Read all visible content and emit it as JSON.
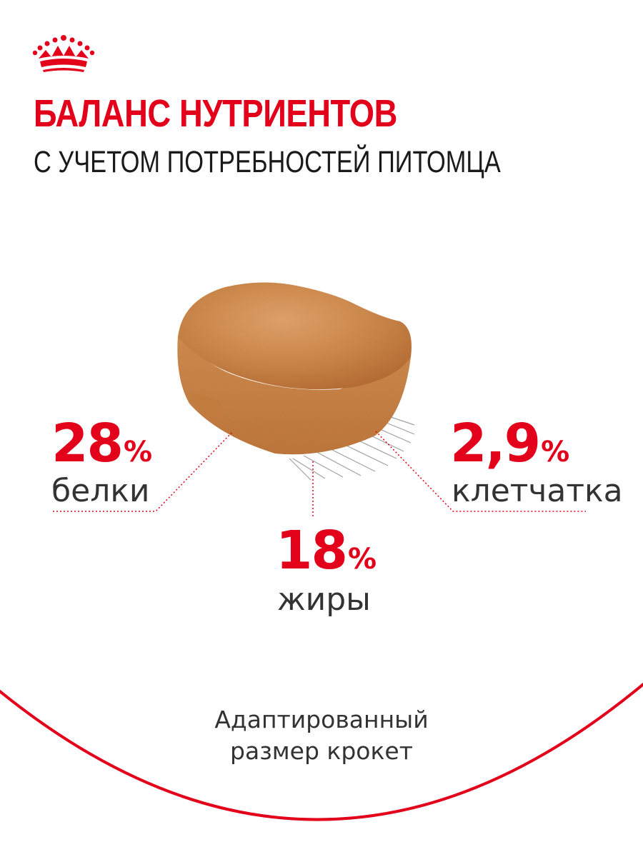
{
  "header": {
    "title": "БАЛАНС НУТРИЕНТОВ",
    "subtitle": "С УЧЕТОМ ПОТРЕБНОСТЕЙ ПИТОМЦА"
  },
  "brand": {
    "logo_icon": "crown-icon",
    "accent_color": "#e2001a"
  },
  "nutrients": {
    "protein": {
      "value": "28",
      "unit": "%",
      "label": "белки"
    },
    "fat": {
      "value": "18",
      "unit": "%",
      "label": "жиры"
    },
    "fiber": {
      "value": "2,9",
      "unit": "%",
      "label": "клетчатка"
    }
  },
  "caption": {
    "line1": "Адаптированный",
    "line2": "размер крокет"
  }
}
